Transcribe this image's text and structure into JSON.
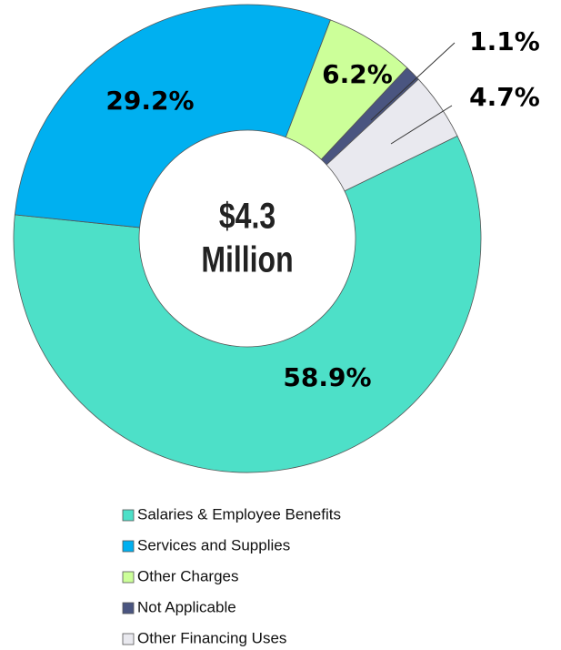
{
  "chart_data": {
    "type": "donut",
    "center_text": [
      "$4.3",
      "Million"
    ],
    "categories": [
      "Salaries & Employee Benefits",
      "Services and Supplies",
      "Other Charges",
      "Not Applicable",
      "Other Financing Uses"
    ],
    "values": [
      58.9,
      29.2,
      6.2,
      1.1,
      4.7
    ],
    "value_labels": [
      "58.9%",
      "29.2%",
      "6.2%",
      "1.1%",
      "4.7%"
    ],
    "colors": [
      "#4de0c8",
      "#00b0f0",
      "#ccff99",
      "#4a5580",
      "#e9e9ef"
    ],
    "legend": "bottom"
  }
}
